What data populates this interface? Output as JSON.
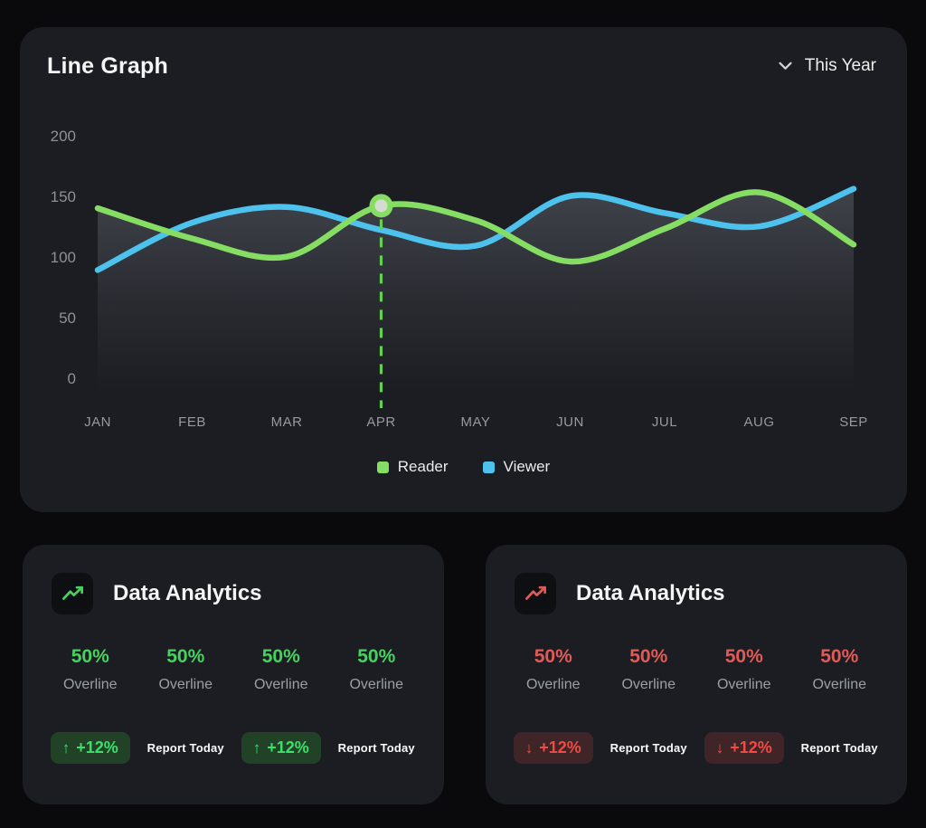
{
  "line_graph_card": {
    "title": "Line Graph",
    "period_selector": {
      "label": "This Year",
      "icon": "chevron-down-icon"
    }
  },
  "chart_data": {
    "type": "line",
    "title": "Line Graph",
    "x": [
      "JAN",
      "FEB",
      "MAR",
      "APR",
      "MAY",
      "JUN",
      "JUL",
      "AUG",
      "SEP"
    ],
    "series": [
      {
        "name": "Reader",
        "color": "#86dd64",
        "values": [
          141,
          116,
          101,
          143,
          131,
          97,
          124,
          154,
          111
        ]
      },
      {
        "name": "Viewer",
        "color": "#4cc2ec",
        "values": [
          90,
          129,
          142,
          123,
          110,
          151,
          137,
          126,
          157
        ]
      }
    ],
    "ylim": [
      0,
      200
    ],
    "yticks": [
      0,
      50,
      100,
      150,
      200
    ],
    "grid": false,
    "legend_position": "bottom",
    "area_fill": "gray gradient under upper envelope",
    "highlight": {
      "series": "Reader",
      "x": "APR",
      "value": 143,
      "marker": true,
      "dashed_drop_line": true,
      "dash_color": "#63d054",
      "marker_inner_color": "#d6dbd2"
    }
  },
  "analytics_cards": [
    {
      "title": "Data Analytics",
      "icon": "trend-line-icon",
      "accent": "#45d25f",
      "badge_color": "#3ae06c",
      "badge_bg": "#224227",
      "stats": [
        {
          "value": "50%",
          "label": "Overline"
        },
        {
          "value": "50%",
          "label": "Overline"
        },
        {
          "value": "50%",
          "label": "Overline"
        },
        {
          "value": "50%",
          "label": "Overline"
        }
      ],
      "actions": [
        {
          "type": "badge",
          "icon": "arrow-up-icon",
          "glyph": "↑",
          "text": "+12%"
        },
        {
          "type": "report",
          "text": "Report Today"
        },
        {
          "type": "badge",
          "icon": "arrow-up-icon",
          "glyph": "↑",
          "text": "+12%"
        },
        {
          "type": "report",
          "text": "Report Today"
        }
      ]
    },
    {
      "title": "Data Analytics",
      "icon": "trend-line-icon",
      "accent": "#e25a57",
      "badge_color": "#f04b41",
      "badge_bg": "#3f2528",
      "stats": [
        {
          "value": "50%",
          "label": "Overline"
        },
        {
          "value": "50%",
          "label": "Overline"
        },
        {
          "value": "50%",
          "label": "Overline"
        },
        {
          "value": "50%",
          "label": "Overline"
        }
      ],
      "actions": [
        {
          "type": "badge",
          "icon": "arrow-down-icon",
          "glyph": "↓",
          "text": "+12%"
        },
        {
          "type": "report",
          "text": "Report Today"
        },
        {
          "type": "badge",
          "icon": "arrow-down-icon",
          "glyph": "↓",
          "text": "+12%"
        },
        {
          "type": "report",
          "text": "Report Today"
        }
      ]
    }
  ]
}
